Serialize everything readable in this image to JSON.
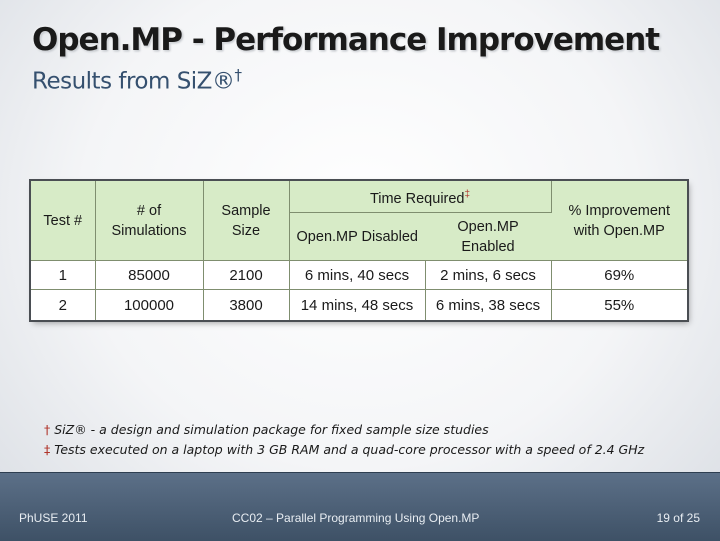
{
  "slide": {
    "title": "Open.MP - Performance Improvement",
    "subtitle": "Results from SiZ®",
    "subtitle_mark": "†"
  },
  "table": {
    "headers": {
      "test": "Test #",
      "simulations": "# of Simulations",
      "sample_size": "Sample Size",
      "time_required": "Time Required",
      "time_required_mark": "‡",
      "disabled": "Open.MP Disabled",
      "enabled": "Open.MP Enabled",
      "improvement": "% Improvement with Open.MP"
    },
    "rows": [
      {
        "test": "1",
        "simulations": "85000",
        "sample_size": "2100",
        "disabled": "6 mins, 40 secs",
        "enabled": "2 mins, 6 secs",
        "improvement": "69%"
      },
      {
        "test": "2",
        "simulations": "100000",
        "sample_size": "3800",
        "disabled": "14 mins, 48 secs",
        "enabled": "6 mins, 38 secs",
        "improvement": "55%"
      }
    ]
  },
  "footnotes": [
    {
      "mark": "†",
      "text": "SiZ® - a design and simulation package for fixed sample size studies"
    },
    {
      "mark": "‡",
      "text": "Tests executed on a laptop with 3 GB RAM and a quad-core processor with a speed of 2.4 GHz"
    }
  ],
  "footer": {
    "left": "PhUSE 2011",
    "center": "CC02 – Parallel Programming Using Open.MP",
    "right": "19 of 25"
  },
  "colors": {
    "header_fill": "#d7ebc7",
    "footer_bar": "#4e6278",
    "footnote_mark": "#b0342a",
    "subtitle": "#35506f"
  }
}
